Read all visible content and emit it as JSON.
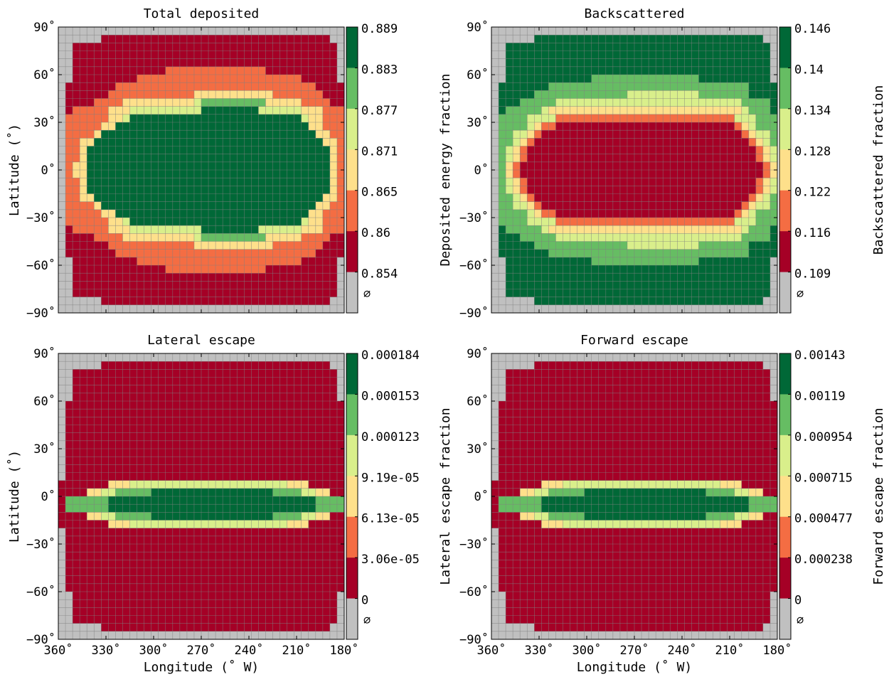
{
  "figure": {
    "xlabel": "Longitude (˚ W)",
    "ylabel": "Latitude (˚)",
    "x_ticks": [
      "360˚",
      "330˚",
      "300˚",
      "270˚",
      "240˚",
      "210˚",
      "180˚"
    ],
    "y_ticks": [
      "90˚",
      "60˚",
      "30˚",
      "0˚",
      "−30˚",
      "−60˚",
      "−90˚"
    ],
    "empty_symbol": "∅"
  },
  "colors": {
    "levels": [
      "#a50026",
      "#f46d43",
      "#fee08b",
      "#d9ef8b",
      "#66bd63",
      "#006837"
    ],
    "empty": "#c0c0c0",
    "grid": "#808080"
  },
  "chart_data": [
    {
      "type": "heatmap",
      "title": "Total deposited",
      "xlabel": "",
      "ylabel": "Latitude (˚)",
      "xlim": [
        360,
        180
      ],
      "ylim": [
        -90,
        90
      ],
      "grid": true,
      "colorbar": {
        "label": "Deposited energy fraction",
        "ticks": [
          "0.889",
          "0.883",
          "0.877",
          "0.871",
          "0.865",
          "0.86",
          "0.854"
        ],
        "empty_label": "∅"
      },
      "rows": [
        "0000000000000000000000000000000000000000",
        "0000001111111111111111111111111111111100",
        "0011111111111111111111111111111111111110",
        "0011111111111111111111111111111111111110",
        "0011111111111111111111111111111111111110",
        "0011111111111112222222222222211111111110",
        "0011111111122222222222222222222222111110",
        "0111111122222222222222222222222222221111",
        "0111111222222222222333333333332222222111",
        "0111122223333333333455555555533333222211",
        "0122222333444444444466666666444444333222",
        "0222222334666666666666666666666666433222",
        "0222223366666666666666666666666666633222",
        "0222236666666666666666666666666666663322",
        "0223366666666666666666666666666666666332",
        "0223666666666666666666666666666666666632",
        "0223666666666666666666666666666666666632",
        "0233666666666666666666666666666666666632",
        "0233666666666666666666666666666666666632",
        "0223666666666666666666666666666666666632",
        "0223666666666666666666666666666666666632",
        "0223366666666666666666666666666666666332",
        "0222236666666666666666666666666666663322",
        "0222223366666666666666666666666666633222",
        "0222222334666666666666666666666666433222",
        "0122222333444444444466666666444444333222",
        "0111122223333333333455555555533333222211",
        "0111111222222222222333333333332222222111",
        "0111111122222222222222222222222222221111",
        "0011111111122222222222222222222222111110",
        "0011111111111112222222222222211111111110",
        "0011111111111111111111111111111111111110",
        "0011111111111111111111111111111111111110",
        "0011111111111111111111111111111111111110",
        "0000001111111111111111111111111111111100",
        "0000000000000000000000000000000000000000"
      ]
    },
    {
      "type": "heatmap",
      "title": "Backscattered",
      "xlabel": "",
      "ylabel": "",
      "xlim": [
        360,
        180
      ],
      "ylim": [
        -90,
        90
      ],
      "grid": true,
      "colorbar": {
        "label": "Backscattered fraction",
        "ticks": [
          "0.146",
          "0.14",
          "0.134",
          "0.128",
          "0.122",
          "0.116",
          "0.109"
        ],
        "empty_label": "∅"
      },
      "rows": [
        "0000000000000000000000000000000000000000",
        "0000006666666666666666666666666666666600",
        "0066666666666666666666666666666666666660",
        "0066666666666666666666666666666666666660",
        "0066666666666666666666666666666666666660",
        "0066666666666666666666666666666666666660",
        "0066666666666655555555555555566666666660",
        "0666666655555555555555555555555555556666",
        "0666665555555555555444444444455555556666",
        "0666555554444444444444444444444444455556",
        "0655555433333333333333333333333333345556",
        "0555544442222222222222222222222222444555",
        "0555543221111111111111111111111111234555",
        "0554432111111111111111111111111111123445",
        "0554321111111111111111111111111111112345",
        "0543211111111111111111111111111111111234",
        "0543211111111111111111111111111111111234",
        "0532111111111111111111111111111111111123",
        "0532111111111111111111111111111111111123",
        "0543211111111111111111111111111111111234",
        "0543211111111111111111111111111111111234",
        "0554321111111111111111111111111111112345",
        "0554432111111111111111111111111111123445",
        "0555543221111111111111111111111111234555",
        "0555544442222222222222222222222222444555",
        "0655555433333333333333333333333333345556",
        "0666555554444444444444444444444444455556",
        "0666665555555555555444444444455555556666",
        "0666666655555555555555555555555555556666",
        "0066666666666655555555555555566666666660",
        "0066666666666666666666666666666666666660",
        "0066666666666666666666666666666666666660",
        "0066666666666666666666666666666666666660",
        "0066666666666666666666666666666666666660",
        "0000006666666666666666666666666666666600",
        "0000000000000000000000000000000000000000"
      ]
    },
    {
      "type": "heatmap",
      "title": "Lateral escape",
      "xlabel": "Longitude (˚ W)",
      "ylabel": "Latitude (˚)",
      "xlim": [
        360,
        180
      ],
      "ylim": [
        -90,
        90
      ],
      "grid": true,
      "colorbar": {
        "label": "Lateral escape fraction",
        "ticks": [
          "0.000184",
          "0.000153",
          "0.000123",
          "9.19e-05",
          "6.13e-05",
          "3.06e-05",
          "0"
        ],
        "empty_label": "∅"
      },
      "rows": [
        "0000000000000000000000000000000000000000",
        "0000001111111111111111111111111111111100",
        "0011111111111111111111111111111111111110",
        "0011111111111111111111111111111111111110",
        "0011111111111111111111111111111111111110",
        "0011111111111111111111111111111111111110",
        "0111111111111111111111111111111111111111",
        "0111111111111111111111111111111111111111",
        "0111111111111111111111111111111111111111",
        "0111111111111111111111111111111111111111",
        "0111111111111111111111111111111111111111",
        "0111111111111111111111111111111111111111",
        "0111111111111111111111111111111111111111",
        "0111111111111111111111111111111111111111",
        "0111111111111111111111111111111111111111",
        "0111111111111111111111111111111111111111",
        "1111111333444444444444444444444433311111",
        "1111334455555666666666666666665555443311",
        "1555555666666666666666666666666666665555",
        "1555555666666666666666666666666666665555",
        "1111334455555666666666666666665555443311",
        "1111111333444444444444444444444433311111",
        "0111111111111111111111111111111111111111",
        "0111111111111111111111111111111111111111",
        "0111111111111111111111111111111111111111",
        "0111111111111111111111111111111111111111",
        "0111111111111111111111111111111111111111",
        "0111111111111111111111111111111111111111",
        "0111111111111111111111111111111111111111",
        "0111111111111111111111111111111111111111",
        "0011111111111111111111111111111111111110",
        "0011111111111111111111111111111111111110",
        "0011111111111111111111111111111111111110",
        "0011111111111111111111111111111111111110",
        "0000001111111111111111111111111111111100",
        "0000000000000000000000000000000000000000"
      ]
    },
    {
      "type": "heatmap",
      "title": "Forward escape",
      "xlabel": "Longitude (˚ W)",
      "ylabel": "",
      "xlim": [
        360,
        180
      ],
      "ylim": [
        -90,
        90
      ],
      "grid": true,
      "colorbar": {
        "label": "Forward escape fraction",
        "ticks": [
          "0.00143",
          "0.00119",
          "0.000954",
          "0.000715",
          "0.000477",
          "0.000238",
          "0"
        ],
        "empty_label": "∅"
      },
      "rows": [
        "0000000000000000000000000000000000000000",
        "0000001111111111111111111111111111111100",
        "0011111111111111111111111111111111111110",
        "0011111111111111111111111111111111111110",
        "0011111111111111111111111111111111111110",
        "0011111111111111111111111111111111111110",
        "0111111111111111111111111111111111111111",
        "0111111111111111111111111111111111111111",
        "0111111111111111111111111111111111111111",
        "0111111111111111111111111111111111111111",
        "0111111111111111111111111111111111111111",
        "0111111111111111111111111111111111111111",
        "0111111111111111111111111111111111111111",
        "0111111111111111111111111111111111111111",
        "0111111111111111111111111111111111111111",
        "0111111111111111111111111111111111111111",
        "1111111333444444444444444444444433311111",
        "1111334455555666666666666666665555443311",
        "1555555666666666666666666666666666665555",
        "1555555666666666666666666666666666665555",
        "1111334455555666666666666666665555443311",
        "1111111333444444444444444444444433311111",
        "0111111111111111111111111111111111111111",
        "0111111111111111111111111111111111111111",
        "0111111111111111111111111111111111111111",
        "0111111111111111111111111111111111111111",
        "0111111111111111111111111111111111111111",
        "0111111111111111111111111111111111111111",
        "0111111111111111111111111111111111111111",
        "0111111111111111111111111111111111111111",
        "0011111111111111111111111111111111111110",
        "0011111111111111111111111111111111111110",
        "0011111111111111111111111111111111111110",
        "0011111111111111111111111111111111111110",
        "0000001111111111111111111111111111111100",
        "0000000000000000000000000000000000000000"
      ]
    }
  ]
}
